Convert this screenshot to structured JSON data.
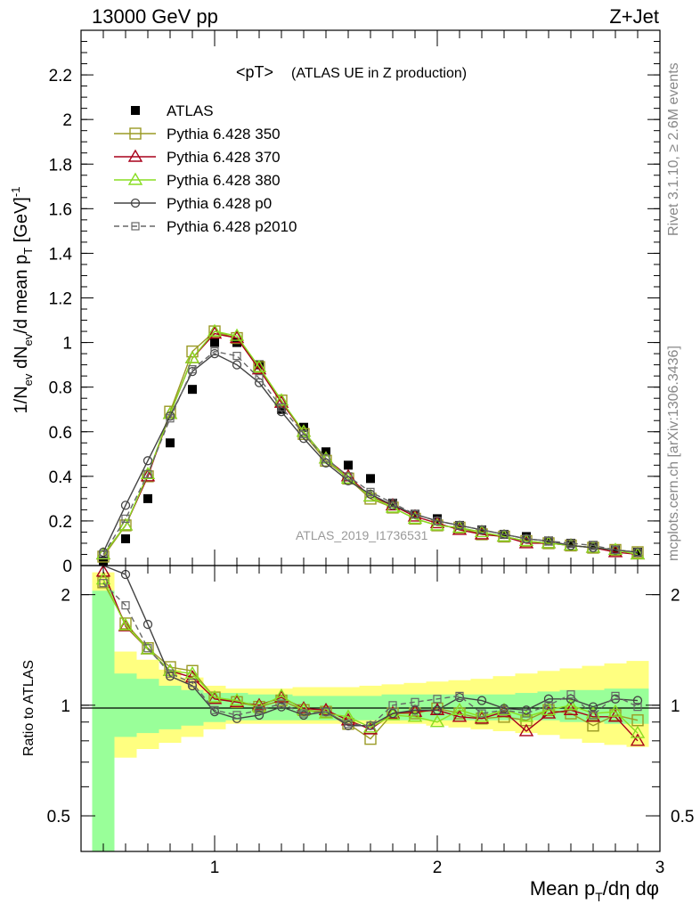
{
  "header": {
    "left": "13000 GeV pp",
    "right": "Z+Jet"
  },
  "side_text": {
    "rivet": "Rivet 3.1.10, ≥ 2.6M events",
    "mcplots": "mcplots.cern.ch [arXiv:1306.3436]"
  },
  "chart_data": [
    {
      "type": "line",
      "panel": "main",
      "title": "<pT>",
      "subtitle": "(ATLAS UE in Z production)",
      "watermark": "ATLAS_2019_I1736531",
      "ylabel": "1/N_ev dN_ev/d mean p_T [GeV]^-1",
      "ylabel_parts": {
        "pre": "1/N",
        "s1": "ev",
        "mid": " dN",
        "s2": "ev",
        "mid2": "/d mean p",
        "s3": "T",
        "mid3": " [GeV]",
        "s4": "-1"
      },
      "xlim": [
        0.4,
        3.0
      ],
      "ylim": [
        0,
        2.4
      ],
      "yticks": [
        "0",
        "0.2",
        "0.4",
        "0.6",
        "0.8",
        "1",
        "1.2",
        "1.4",
        "1.6",
        "1.8",
        "2",
        "2.2"
      ],
      "legend_position": "top-left",
      "x": [
        0.5,
        0.6,
        0.7,
        0.8,
        0.9,
        1.0,
        1.1,
        1.2,
        1.3,
        1.4,
        1.5,
        1.6,
        1.7,
        1.8,
        1.9,
        2.0,
        2.1,
        2.2,
        2.3,
        2.4,
        2.5,
        2.6,
        2.7,
        2.8,
        2.9
      ],
      "series": [
        {
          "name": "ATLAS",
          "color": "#000000",
          "marker": "filled-square",
          "dash": false,
          "values": [
            0.02,
            0.12,
            0.3,
            0.55,
            0.79,
            1.0,
            1.0,
            0.9,
            0.7,
            0.62,
            0.51,
            0.45,
            0.39,
            0.28,
            0.23,
            0.21,
            0.18,
            0.16,
            0.14,
            0.13,
            0.11,
            0.1,
            0.09,
            0.07,
            0.06
          ]
        },
        {
          "name": "Pythia 6.428 350",
          "color": "#9a9a24",
          "marker": "open-square",
          "dash": false,
          "values": [
            0.04,
            0.18,
            0.4,
            0.69,
            0.96,
            1.05,
            1.02,
            0.89,
            0.74,
            0.59,
            0.47,
            0.39,
            0.3,
            0.26,
            0.21,
            0.18,
            0.17,
            0.14,
            0.13,
            0.11,
            0.1,
            0.09,
            0.08,
            0.07,
            0.06
          ]
        },
        {
          "name": "Pythia 6.428 370",
          "color": "#a8001a",
          "marker": "open-triangle",
          "dash": false,
          "values": [
            0.05,
            0.18,
            0.4,
            0.68,
            0.93,
            1.04,
            1.02,
            0.88,
            0.73,
            0.6,
            0.48,
            0.4,
            0.31,
            0.27,
            0.22,
            0.19,
            0.16,
            0.14,
            0.13,
            0.1,
            0.1,
            0.09,
            0.08,
            0.06,
            0.05
          ]
        },
        {
          "name": "Pythia 6.428 380",
          "color": "#88dd22",
          "marker": "open-triangle",
          "dash": false,
          "values": [
            0.05,
            0.18,
            0.41,
            0.68,
            0.93,
            1.05,
            1.03,
            0.89,
            0.74,
            0.6,
            0.48,
            0.39,
            0.31,
            0.26,
            0.21,
            0.18,
            0.17,
            0.15,
            0.13,
            0.11,
            0.1,
            0.09,
            0.08,
            0.07,
            0.05
          ]
        },
        {
          "name": "Pythia 6.428 p0",
          "color": "#444444",
          "marker": "open-circle",
          "dash": false,
          "values": [
            0.06,
            0.27,
            0.47,
            0.67,
            0.87,
            0.95,
            0.9,
            0.82,
            0.69,
            0.57,
            0.46,
            0.38,
            0.32,
            0.27,
            0.23,
            0.2,
            0.18,
            0.16,
            0.14,
            0.12,
            0.11,
            0.09,
            0.08,
            0.07,
            0.06
          ]
        },
        {
          "name": "Pythia 6.428 p2010",
          "color": "#666666",
          "marker": "open-square-small",
          "dash": true,
          "values": [
            0.05,
            0.21,
            0.41,
            0.66,
            0.88,
            0.96,
            0.94,
            0.84,
            0.71,
            0.59,
            0.48,
            0.4,
            0.33,
            0.28,
            0.23,
            0.2,
            0.18,
            0.16,
            0.14,
            0.12,
            0.11,
            0.1,
            0.09,
            0.07,
            0.06
          ]
        }
      ]
    },
    {
      "type": "line",
      "panel": "ratio",
      "ylabel": "Ratio to ATLAS",
      "xlabel": "Mean p_T/dη dφ",
      "xlabel_parts": {
        "pre": "Mean p",
        "sub": "T",
        "post": "/dη dφ"
      },
      "xlim": [
        0.4,
        3.0
      ],
      "ylim": [
        0.4,
        2.4
      ],
      "log_y": true,
      "xticks": [
        "1",
        "2",
        "3"
      ],
      "yticks": [
        "0.5",
        "1",
        "2"
      ],
      "bands": {
        "green": {
          "color": "#99ff99",
          "lo": [
            0.4,
            0.82,
            0.84,
            0.86,
            0.88,
            0.9,
            0.91,
            0.91,
            0.91,
            0.91,
            0.91,
            0.91,
            0.91,
            0.91,
            0.91,
            0.91,
            0.91,
            0.91,
            0.91,
            0.91,
            0.91,
            0.9,
            0.9,
            0.89,
            0.89
          ],
          "hi": [
            2.05,
            1.22,
            1.18,
            1.13,
            1.1,
            1.08,
            1.08,
            1.07,
            1.07,
            1.06,
            1.06,
            1.06,
            1.06,
            1.07,
            1.07,
            1.07,
            1.07,
            1.07,
            1.07,
            1.08,
            1.09,
            1.1,
            1.1,
            1.11,
            1.11
          ]
        },
        "yellow": {
          "color": "#ffff80",
          "lo": [
            0.4,
            0.72,
            0.76,
            0.79,
            0.82,
            0.86,
            0.89,
            0.89,
            0.89,
            0.89,
            0.89,
            0.89,
            0.89,
            0.89,
            0.89,
            0.88,
            0.87,
            0.86,
            0.85,
            0.84,
            0.83,
            0.81,
            0.79,
            0.78,
            0.77
          ],
          "hi": [
            2.3,
            1.4,
            1.33,
            1.25,
            1.19,
            1.13,
            1.11,
            1.11,
            1.11,
            1.12,
            1.12,
            1.12,
            1.13,
            1.14,
            1.15,
            1.16,
            1.17,
            1.18,
            1.2,
            1.22,
            1.24,
            1.26,
            1.28,
            1.3,
            1.32
          ]
        }
      },
      "x": [
        0.5,
        0.6,
        0.7,
        0.8,
        0.9,
        1.0,
        1.1,
        1.2,
        1.3,
        1.4,
        1.5,
        1.6,
        1.7,
        1.8,
        1.9,
        2.0,
        2.1,
        2.2,
        2.3,
        2.4,
        2.5,
        2.6,
        2.7,
        2.8,
        2.9
      ],
      "series": [
        {
          "name": "Pythia 6.428 350",
          "color": "#9a9a24",
          "marker": "open-square",
          "dash": false,
          "values": [
            2.16,
            1.67,
            1.43,
            1.27,
            1.24,
            1.05,
            1.02,
            0.99,
            1.03,
            0.97,
            0.96,
            0.89,
            0.81,
            0.95,
            0.95,
            0.98,
            0.95,
            0.92,
            0.93,
            0.91,
            0.97,
            0.95,
            0.88,
            0.94,
            0.91
          ]
        },
        {
          "name": "Pythia 6.428 370",
          "color": "#a8001a",
          "marker": "open-triangle",
          "dash": false,
          "values": [
            2.31,
            1.64,
            1.42,
            1.24,
            1.19,
            1.04,
            1.02,
            1.0,
            1.05,
            0.98,
            0.97,
            0.91,
            0.86,
            0.95,
            0.96,
            0.97,
            0.93,
            0.92,
            0.96,
            0.85,
            0.95,
            0.97,
            0.93,
            0.93,
            0.8
          ]
        },
        {
          "name": "Pythia 6.428 380",
          "color": "#88dd22",
          "marker": "open-triangle",
          "dash": false,
          "values": [
            2.2,
            1.65,
            1.42,
            1.24,
            1.22,
            1.05,
            1.03,
            0.99,
            1.06,
            0.97,
            0.95,
            0.93,
            0.87,
            0.94,
            0.93,
            0.9,
            0.97,
            0.93,
            0.97,
            0.93,
            0.97,
            1.0,
            0.95,
            0.96,
            0.84
          ]
        },
        {
          "name": "Pythia 6.428 p0",
          "color": "#444444",
          "marker": "open-circle",
          "dash": false,
          "values": [
            2.45,
            2.27,
            1.66,
            1.2,
            1.13,
            0.96,
            0.92,
            0.94,
            0.99,
            0.94,
            0.96,
            0.88,
            0.88,
            0.95,
            0.97,
            0.97,
            1.05,
            1.03,
            0.98,
            0.97,
            1.04,
            1.04,
            0.99,
            1.04,
            1.03
          ]
        },
        {
          "name": "Pythia 6.428 p2010",
          "color": "#666666",
          "marker": "open-square-small",
          "dash": true,
          "values": [
            2.15,
            1.87,
            1.43,
            1.22,
            1.15,
            0.97,
            0.94,
            0.97,
            1.01,
            0.95,
            0.96,
            0.89,
            0.88,
            1.0,
            1.02,
            1.04,
            1.06,
            0.95,
            0.97,
            0.95,
            1.0,
            1.07,
            0.94,
            1.06,
            0.99
          ]
        }
      ]
    }
  ]
}
